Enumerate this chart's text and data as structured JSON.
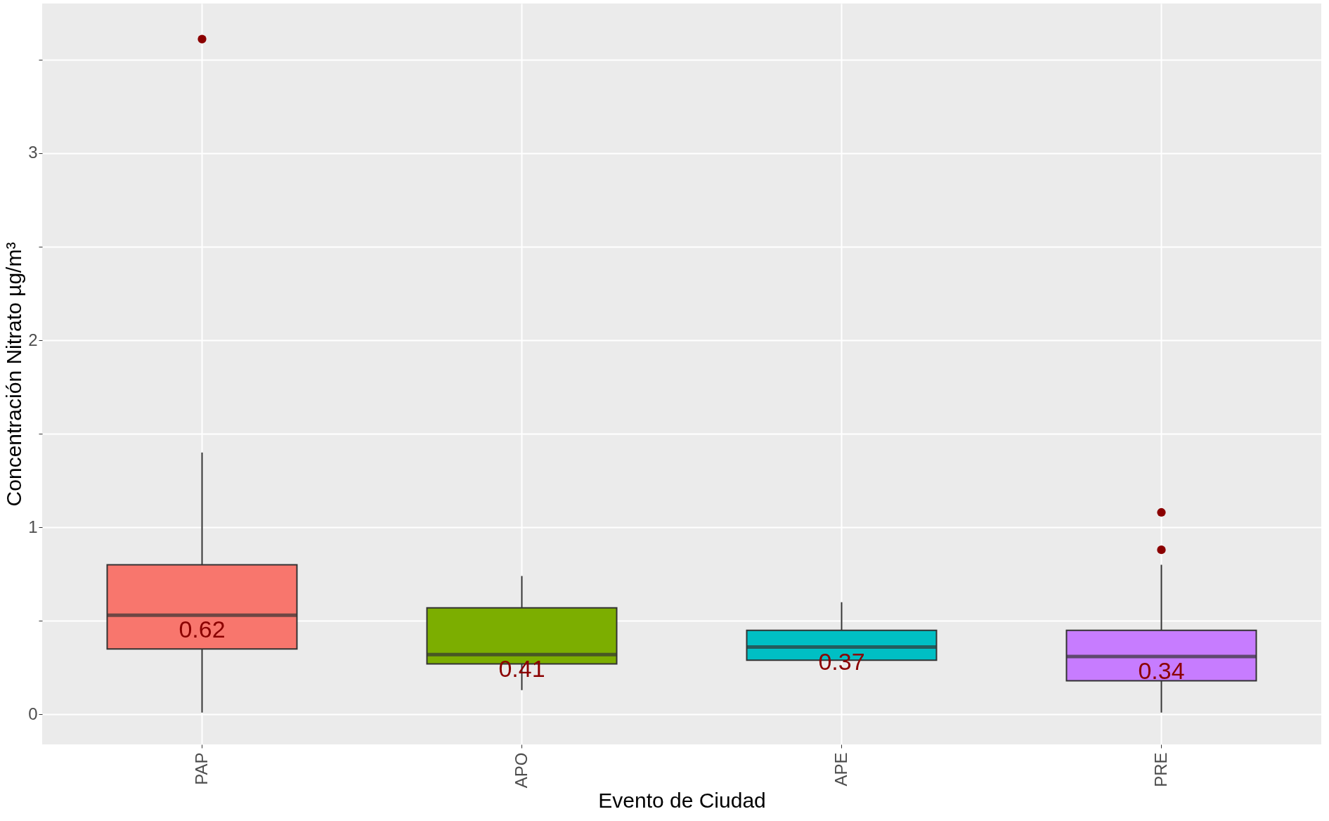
{
  "chart_data": {
    "type": "box",
    "xlabel": "Evento de Ciudad",
    "ylabel": "Concentración Nitrato µg/m³",
    "categories": [
      "PAP",
      "APO",
      "APE",
      "PRE"
    ],
    "colors": [
      "#f8766d",
      "#7cae00",
      "#00bfc4",
      "#c77cff"
    ],
    "boxes": [
      {
        "low": 0.01,
        "q1": 0.35,
        "median": 0.53,
        "q3": 0.8,
        "high": 1.4,
        "outliers": [
          3.61
        ]
      },
      {
        "low": 0.13,
        "q1": 0.27,
        "median": 0.32,
        "q3": 0.57,
        "high": 0.74
      },
      {
        "low": 0.29,
        "q1": 0.29,
        "median": 0.36,
        "q3": 0.45,
        "high": 0.6
      },
      {
        "low": 0.01,
        "q1": 0.18,
        "median": 0.31,
        "q3": 0.45,
        "high": 0.8,
        "outliers": [
          1.08,
          0.88
        ]
      }
    ],
    "annotations": [
      "0.62",
      "0.41",
      "0.37",
      "0.34"
    ],
    "ylim": [
      -0.16,
      3.8
    ],
    "yticks": [
      0,
      {
        "value": 0.5,
        "label": null
      },
      1,
      {
        "value": 1.5,
        "label": null
      },
      2,
      {
        "value": 2.5,
        "label": null
      },
      3,
      {
        "value": 3.5,
        "label": null
      }
    ],
    "grid": true
  }
}
